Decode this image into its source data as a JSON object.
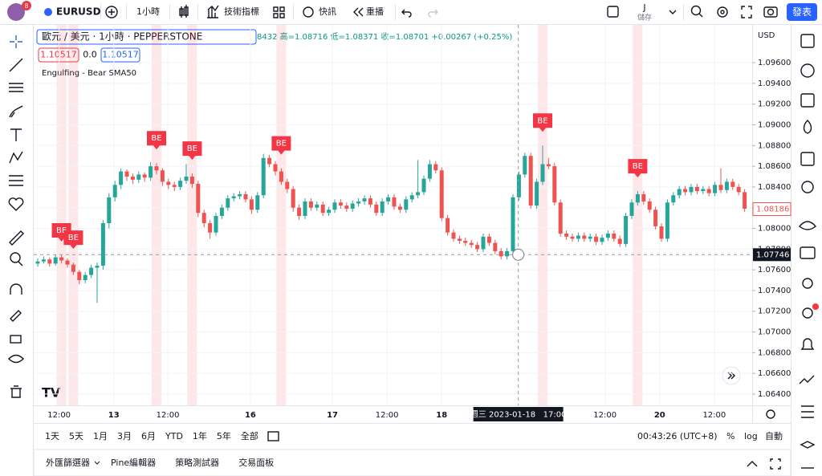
{
  "toolbar": {
    "badge": "8",
    "symbol": "EURUSD",
    "interval": "1小時",
    "indicators": "技術指標",
    "alerts": "快訊",
    "replay": "重播",
    "layout_initial": "J",
    "save": "儲存",
    "publish": "發表"
  },
  "legend": {
    "title": "歐元 / 美元 · 1小時 · PEPPERSTONE",
    "ohlc": "8432  高=1.08716  低=1.08371  收=1.08701  +0.00267 (+0.25%)",
    "sell": "1.10517",
    "spread": "0.0",
    "buy": "1.10517",
    "indicator": "Engulfing - Bear SMA50"
  },
  "chart": {
    "currency": "USD",
    "ylim": [
      1.06291,
      1.09965
    ],
    "yticks": [
      {
        "value": 1.064,
        "label": "1.06400"
      },
      {
        "value": 1.066,
        "label": "1.06600"
      },
      {
        "value": 1.068,
        "label": "1.06800"
      },
      {
        "value": 1.07,
        "label": "1.07000"
      },
      {
        "value": 1.072,
        "label": "1.07200"
      },
      {
        "value": 1.074,
        "label": "1.07400"
      },
      {
        "value": 1.076,
        "label": "1.07600"
      },
      {
        "value": 1.078,
        "label": "1.07800"
      },
      {
        "value": 1.08,
        "label": "1.08000"
      },
      {
        "value": 1.082,
        "label": "1.08200"
      },
      {
        "value": 1.084,
        "label": "1.08400"
      },
      {
        "value": 1.086,
        "label": "1.08600"
      },
      {
        "value": 1.088,
        "label": "1.08800"
      },
      {
        "value": 1.09,
        "label": "1.09000"
      },
      {
        "value": 1.092,
        "label": "1.09200"
      },
      {
        "value": 1.094,
        "label": "1.09400"
      },
      {
        "value": 1.096,
        "label": "1.09600"
      }
    ],
    "xticks": [
      {
        "value": 3.6,
        "label": "12:00"
      },
      {
        "value": 12.8,
        "label": "13"
      },
      {
        "value": 21.9,
        "label": "12:00"
      },
      {
        "value": 35.8,
        "label": "16"
      },
      {
        "value": 49.6,
        "label": "17"
      },
      {
        "value": 58.8,
        "label": "12:00"
      },
      {
        "value": 68,
        "label": "18"
      },
      {
        "value": 95.5,
        "label": "12:00"
      },
      {
        "value": 104.7,
        "label": "20"
      },
      {
        "value": 113.9,
        "label": "12:00"
      }
    ],
    "candles": [
      [
        1.0766,
        1.0771,
        1.0763,
        1.0768
      ],
      [
        1.0768,
        1.0773,
        1.0766,
        1.077
      ],
      [
        1.077,
        1.0772,
        1.0763,
        1.0766
      ],
      [
        1.0766,
        1.0775,
        1.0764,
        1.0772
      ],
      [
        1.0772,
        1.0774,
        1.0766,
        1.0769
      ],
      [
        1.0769,
        1.0771,
        1.0762,
        1.0765
      ],
      [
        1.0765,
        1.0767,
        1.0755,
        1.0758
      ],
      [
        1.0758,
        1.076,
        1.0746,
        1.075
      ],
      [
        1.075,
        1.0758,
        1.0747,
        1.0755
      ],
      [
        1.0755,
        1.0765,
        1.0752,
        1.0762
      ],
      [
        1.0762,
        1.0767,
        1.0728,
        1.0764
      ],
      [
        1.0764,
        1.0808,
        1.076,
        1.0805
      ],
      [
        1.0805,
        1.0834,
        1.08,
        1.083
      ],
      [
        1.083,
        1.0846,
        1.0826,
        1.0842
      ],
      [
        1.0842,
        1.0858,
        1.0838,
        1.0855
      ],
      [
        1.0855,
        1.0857,
        1.0846,
        1.085
      ],
      [
        1.085,
        1.0853,
        1.0843,
        1.0847
      ],
      [
        1.0847,
        1.0855,
        1.0844,
        1.0852
      ],
      [
        1.0852,
        1.0854,
        1.0845,
        1.0849
      ],
      [
        1.0849,
        1.0864,
        1.0846,
        1.086
      ],
      [
        1.086,
        1.0863,
        1.0852,
        1.0856
      ],
      [
        1.0856,
        1.0858,
        1.0841,
        1.0845
      ],
      [
        1.0845,
        1.0848,
        1.0838,
        1.0842
      ],
      [
        1.0842,
        1.0845,
        1.0836,
        1.084
      ],
      [
        1.084,
        1.0849,
        1.0837,
        1.0846
      ],
      [
        1.0846,
        1.0862,
        1.0843,
        1.085
      ],
      [
        1.085,
        1.0853,
        1.0839,
        1.0843
      ],
      [
        1.0843,
        1.0846,
        1.0811,
        1.0815
      ],
      [
        1.0815,
        1.0818,
        1.0801,
        1.0805
      ],
      [
        1.0805,
        1.0808,
        1.079,
        1.0796
      ],
      [
        1.0796,
        1.0815,
        1.0793,
        1.0812
      ],
      [
        1.0812,
        1.0823,
        1.0809,
        1.082
      ],
      [
        1.082,
        1.0832,
        1.0817,
        1.0829
      ],
      [
        1.0829,
        1.0834,
        1.0826,
        1.0831
      ],
      [
        1.0831,
        1.0836,
        1.0828,
        1.0833
      ],
      [
        1.0833,
        1.0836,
        1.0825,
        1.0828
      ],
      [
        1.0828,
        1.0831,
        1.0814,
        1.0818
      ],
      [
        1.0818,
        1.0835,
        1.0815,
        1.0832
      ],
      [
        1.0832,
        1.0872,
        1.0829,
        1.0868
      ],
      [
        1.0868,
        1.0871,
        1.0859,
        1.0862
      ],
      [
        1.0862,
        1.0865,
        1.0851,
        1.0855
      ],
      [
        1.0855,
        1.0858,
        1.0842,
        1.0845
      ],
      [
        1.0845,
        1.0848,
        1.0834,
        1.0838
      ],
      [
        1.0838,
        1.0841,
        1.0816,
        1.082
      ],
      [
        1.082,
        1.0823,
        1.0808,
        1.0812
      ],
      [
        1.0812,
        1.0829,
        1.0809,
        1.0826
      ],
      [
        1.0826,
        1.0829,
        1.0817,
        1.082
      ],
      [
        1.082,
        1.0826,
        1.0817,
        1.0823
      ],
      [
        1.0823,
        1.0826,
        1.0812,
        1.0815
      ],
      [
        1.0815,
        1.0821,
        1.0812,
        1.0818
      ],
      [
        1.0818,
        1.0828,
        1.0815,
        1.0825
      ],
      [
        1.0825,
        1.0828,
        1.0819,
        1.0822
      ],
      [
        1.0822,
        1.0825,
        1.0816,
        1.0819
      ],
      [
        1.0819,
        1.0827,
        1.0816,
        1.0824
      ],
      [
        1.0824,
        1.0829,
        1.0821,
        1.0826
      ],
      [
        1.0826,
        1.0832,
        1.0823,
        1.0829
      ],
      [
        1.0829,
        1.0832,
        1.082,
        1.0823
      ],
      [
        1.0823,
        1.0826,
        1.0812,
        1.0815
      ],
      [
        1.0815,
        1.0829,
        1.0812,
        1.0826
      ],
      [
        1.0826,
        1.0833,
        1.0823,
        1.083
      ],
      [
        1.083,
        1.0833,
        1.0818,
        1.0821
      ],
      [
        1.0821,
        1.0824,
        1.0815,
        1.0818
      ],
      [
        1.0818,
        1.0831,
        1.0815,
        1.0828
      ],
      [
        1.0828,
        1.0835,
        1.0825,
        1.0832
      ],
      [
        1.0832,
        1.0866,
        1.0829,
        1.0835
      ],
      [
        1.0835,
        1.0851,
        1.0832,
        1.0848
      ],
      [
        1.0848,
        1.0866,
        1.0845,
        1.0862
      ],
      [
        1.0862,
        1.0865,
        1.0853,
        1.0856
      ],
      [
        1.0856,
        1.0859,
        1.0807,
        1.081
      ],
      [
        1.081,
        1.0813,
        1.0793,
        1.0796
      ],
      [
        1.0796,
        1.0799,
        1.0787,
        1.079
      ],
      [
        1.079,
        1.0793,
        1.0785,
        1.0788
      ],
      [
        1.0788,
        1.0791,
        1.0783,
        1.0786
      ],
      [
        1.0786,
        1.0789,
        1.0781,
        1.0784
      ],
      [
        1.0784,
        1.0787,
        1.0777,
        1.078
      ],
      [
        1.078,
        1.0795,
        1.0777,
        1.0792
      ],
      [
        1.0792,
        1.0795,
        1.0783,
        1.0786
      ],
      [
        1.0786,
        1.0789,
        1.0775,
        1.0778
      ],
      [
        1.0778,
        1.0781,
        1.077,
        1.0773
      ],
      [
        1.0773,
        1.0781,
        1.077,
        1.0778
      ],
      [
        1.0778,
        1.0833,
        1.0775,
        1.083
      ],
      [
        1.083,
        1.0855,
        1.0827,
        1.0852
      ],
      [
        1.0852,
        1.0873,
        1.0849,
        1.087
      ],
      [
        1.087,
        1.0873,
        1.0819,
        1.0822
      ],
      [
        1.0822,
        1.0848,
        1.0819,
        1.0845
      ],
      [
        1.0845,
        1.088,
        1.0842,
        1.0862
      ],
      [
        1.0862,
        1.0868,
        1.0857,
        1.086
      ],
      [
        1.086,
        1.0863,
        1.0822,
        1.0825
      ],
      [
        1.0825,
        1.0828,
        1.0792,
        1.0795
      ],
      [
        1.0795,
        1.0798,
        1.0789,
        1.0792
      ],
      [
        1.0792,
        1.0795,
        1.0787,
        1.079
      ],
      [
        1.079,
        1.0796,
        1.0787,
        1.0793
      ],
      [
        1.0793,
        1.0796,
        1.0787,
        1.079
      ],
      [
        1.079,
        1.0795,
        1.0787,
        1.0792
      ],
      [
        1.0792,
        1.0795,
        1.0784,
        1.0787
      ],
      [
        1.0787,
        1.0794,
        1.0784,
        1.0791
      ],
      [
        1.0791,
        1.0798,
        1.0788,
        1.0795
      ],
      [
        1.0795,
        1.0798,
        1.0787,
        1.079
      ],
      [
        1.079,
        1.0793,
        1.0782,
        1.0785
      ],
      [
        1.0785,
        1.0815,
        1.0782,
        1.0812
      ],
      [
        1.0812,
        1.0828,
        1.0809,
        1.0825
      ],
      [
        1.0825,
        1.0836,
        1.0822,
        1.0833
      ],
      [
        1.0833,
        1.0836,
        1.0823,
        1.0826
      ],
      [
        1.0826,
        1.0829,
        1.0815,
        1.0818
      ],
      [
        1.0818,
        1.0821,
        1.0799,
        1.0802
      ],
      [
        1.0802,
        1.0805,
        1.0787,
        1.079
      ],
      [
        1.079,
        1.0828,
        1.0787,
        1.0825
      ],
      [
        1.0825,
        1.0835,
        1.0822,
        1.0832
      ],
      [
        1.0832,
        1.0841,
        1.0829,
        1.0838
      ],
      [
        1.0838,
        1.0841,
        1.0832,
        1.0835
      ],
      [
        1.0835,
        1.0843,
        1.0832,
        1.084
      ],
      [
        1.084,
        1.0843,
        1.0833,
        1.0836
      ],
      [
        1.0836,
        1.0841,
        1.0833,
        1.0838
      ],
      [
        1.0838,
        1.0841,
        1.0831,
        1.0834
      ],
      [
        1.0834,
        1.0845,
        1.0831,
        1.0842
      ],
      [
        1.0842,
        1.0858,
        1.0834,
        1.0837
      ],
      [
        1.0837,
        1.0848,
        1.0834,
        1.0845
      ],
      [
        1.0845,
        1.0848,
        1.0837,
        1.084
      ],
      [
        1.084,
        1.0843,
        1.0832,
        1.0835
      ],
      [
        1.0835,
        1.0838,
        1.0816,
        1.0819
      ]
    ],
    "up_color": "#26a69a",
    "down_color": "#ef5350",
    "signals": {
      "label": "BE",
      "color": "#f23645",
      "indices": [
        4,
        6,
        20,
        26,
        41,
        85,
        101
      ]
    },
    "last_price": 1.08186,
    "crosshair": {
      "price": 1.07746,
      "time_index": 80.9,
      "time_label": "週三 2023-01-18   17:00"
    }
  },
  "bottom_bar": {
    "ranges": [
      "1天",
      "5天",
      "1月",
      "3月",
      "6月",
      "YTD",
      "1年",
      "5年",
      "全部"
    ],
    "clock": "00:43:26 (UTC+8)",
    "percent": "%",
    "log": "log",
    "auto": "自動"
  },
  "tabs": [
    "外匯篩選器",
    "Pine編輯器",
    "策略測試器",
    "交易面板"
  ]
}
